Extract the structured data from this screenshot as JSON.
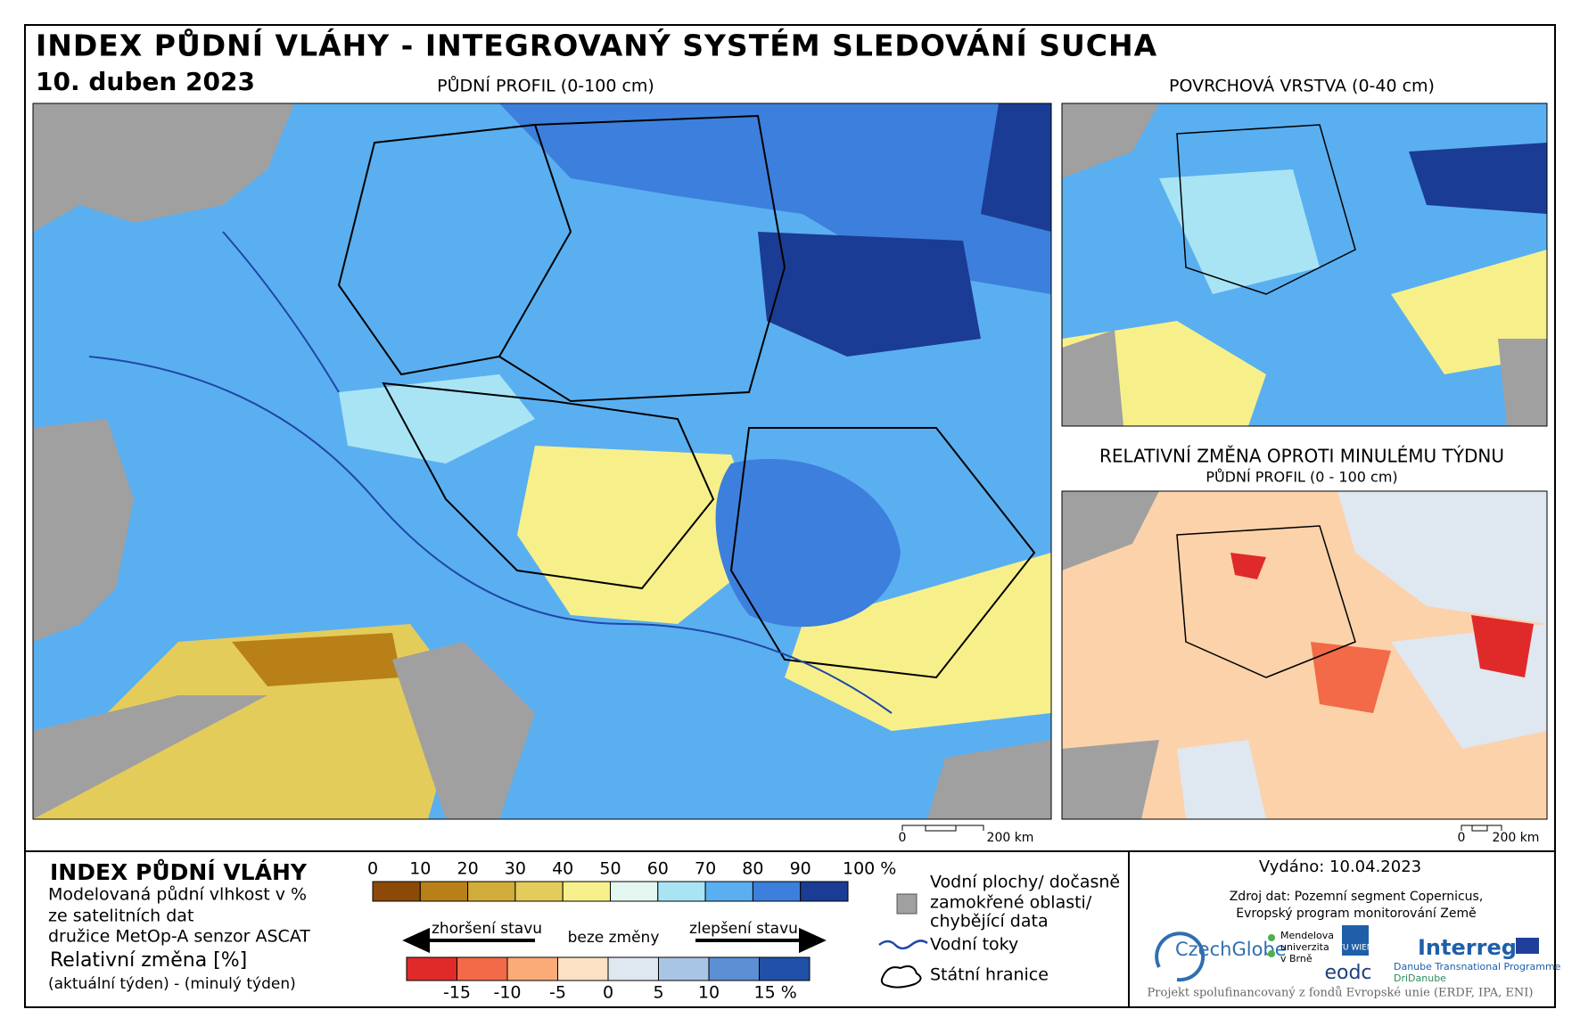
{
  "header": {
    "title": "INDEX PŮDNÍ VLÁHY - INTEGROVANÝ SYSTÉM SLEDOVÁNÍ SUCHA",
    "date": "10. duben 2023"
  },
  "maps": {
    "main_title": "PŮDNÍ PROFIL (0-100 cm)",
    "surface_title": "POVRCHOVÁ VRSTVA (0-40 cm)",
    "change_title": "RELATIVNÍ ZMĚNA OPROTI MINULÉMU TÝDNU",
    "change_subtitle": "PŮDNÍ PROFIL (0 - 100 cm)",
    "scale_zero": "0",
    "scale_label": "200 km"
  },
  "legend": {
    "title": "INDEX PŮDNÍ VLÁHY",
    "description": [
      "Modelovaná půdní vlhkost v %",
      "ze satelitních dat",
      "družice MetOp-A senzor ASCAT"
    ],
    "change_title": "Relativní změna [%]",
    "change_description": "(aktuální týden) - (minulý týden)",
    "moisture_ticks": [
      "0",
      "10",
      "20",
      "30",
      "40",
      "50",
      "60",
      "70",
      "80",
      "90",
      "100 %"
    ],
    "moisture_colors": [
      "#8b4a08",
      "#b98018",
      "#d2ac3a",
      "#e4cc5a",
      "#f7f08a",
      "#e3f6ef",
      "#a8e4f4",
      "#5aaff0",
      "#3d7fdc",
      "#1b3c94"
    ],
    "change_ticks": [
      "-15",
      "-10",
      "-5",
      "0",
      "5",
      "10",
      "15 %"
    ],
    "change_colors": [
      "#e02a2a",
      "#f26a48",
      "#fbab78",
      "#fde1c4",
      "#dfe7f1",
      "#a9c5e6",
      "#5c8fd3",
      "#2050a8"
    ],
    "worse": "zhoršení stavu",
    "no_change": "beze změny",
    "better": "zlepšení stavu",
    "items": {
      "water_lines": [
        "Vodní plochy/ dočasně",
        "zamokřené oblasti/",
        "chybějící data"
      ],
      "rivers": "Vodní toky",
      "borders": "Státní hranice"
    }
  },
  "footer": {
    "issued": "Vydáno: 10.04.2023",
    "source": [
      "Zdroj dat: Pozemní segment Copernicus,",
      "Evropský program monitorování Země"
    ],
    "logos": {
      "czechglobe": "CzechGlobe",
      "mendelu": [
        "Mendelova",
        "univerzita",
        "v Brně"
      ],
      "tuwien": "TU WIEN",
      "eodc": "eodc",
      "interreg": "Interreg",
      "interreg_sub": "Danube Transnational Programme",
      "dridanube": "DriDanube"
    },
    "note": "Projekt spolufinancovaný z fondů Evropské unie (ERDF, IPA, ENI)"
  }
}
